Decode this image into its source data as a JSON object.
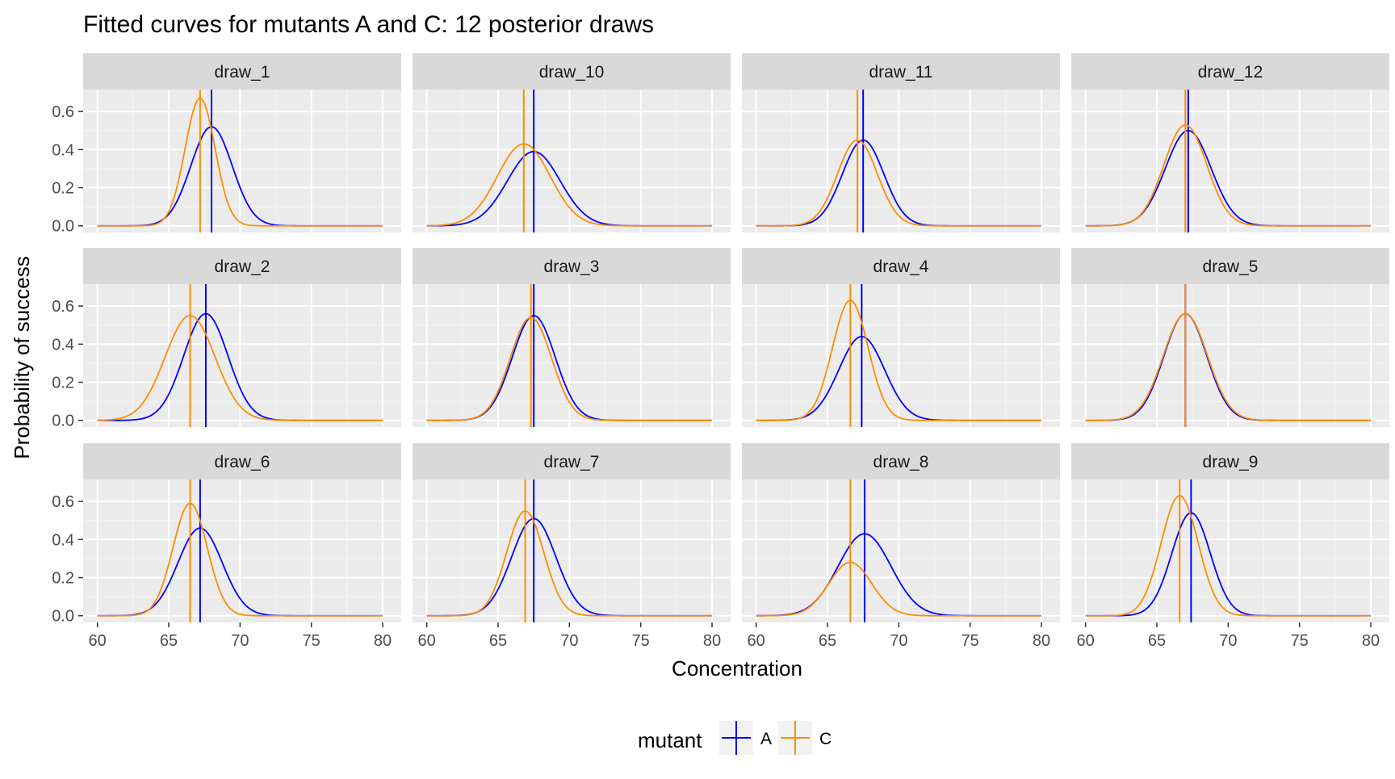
{
  "chart_data": {
    "type": "line",
    "title": "Fitted curves for mutants A and C: 12 posterior draws",
    "xlabel": "Concentration",
    "ylabel": "Probability of success",
    "xlim": [
      59,
      81.3
    ],
    "ylim": [
      -0.035,
      0.715
    ],
    "x_ticks": [
      60,
      65,
      70,
      75,
      80
    ],
    "y_ticks": [
      0.0,
      0.2,
      0.4,
      0.6
    ],
    "y_tick_labels": [
      "0.0",
      "0.2",
      "0.4",
      "0.6"
    ],
    "facets_ncol": 4,
    "grid": true,
    "legend": {
      "title": "mutant",
      "position": "bottom",
      "entries": [
        {
          "key": "A",
          "label": "A",
          "color": "#0000FF"
        },
        {
          "key": "C",
          "label": "C",
          "color": "#FF8C00"
        }
      ]
    },
    "curve_shape": "Gaussian peak: y = peak * exp(-(x - center)^2 / (2 * sd^2)), x from 60 to 80; vertical line at center",
    "panels": [
      {
        "label": "draw_1",
        "A": {
          "center": 68.0,
          "peak": 0.52,
          "sd": 1.45
        },
        "C": {
          "center": 67.2,
          "peak": 0.67,
          "sd": 1.05
        }
      },
      {
        "label": "draw_10",
        "A": {
          "center": 67.5,
          "peak": 0.39,
          "sd": 1.85
        },
        "C": {
          "center": 66.8,
          "peak": 0.43,
          "sd": 1.85
        }
      },
      {
        "label": "draw_11",
        "A": {
          "center": 67.5,
          "peak": 0.45,
          "sd": 1.45
        },
        "C": {
          "center": 67.1,
          "peak": 0.45,
          "sd": 1.4
        }
      },
      {
        "label": "draw_12",
        "A": {
          "center": 67.2,
          "peak": 0.5,
          "sd": 1.6
        },
        "C": {
          "center": 67.0,
          "peak": 0.53,
          "sd": 1.5
        }
      },
      {
        "label": "draw_2",
        "A": {
          "center": 67.6,
          "peak": 0.56,
          "sd": 1.55
        },
        "C": {
          "center": 66.5,
          "peak": 0.55,
          "sd": 1.75
        }
      },
      {
        "label": "draw_3",
        "A": {
          "center": 67.5,
          "peak": 0.55,
          "sd": 1.5
        },
        "C": {
          "center": 67.3,
          "peak": 0.54,
          "sd": 1.45
        }
      },
      {
        "label": "draw_4",
        "A": {
          "center": 67.4,
          "peak": 0.44,
          "sd": 1.6
        },
        "C": {
          "center": 66.6,
          "peak": 0.63,
          "sd": 1.25
        }
      },
      {
        "label": "draw_5",
        "A": {
          "center": 67.0,
          "peak": 0.56,
          "sd": 1.5
        },
        "C": {
          "center": 67.0,
          "peak": 0.56,
          "sd": 1.55
        }
      },
      {
        "label": "draw_6",
        "A": {
          "center": 67.2,
          "peak": 0.46,
          "sd": 1.55
        },
        "C": {
          "center": 66.5,
          "peak": 0.59,
          "sd": 1.2
        }
      },
      {
        "label": "draw_7",
        "A": {
          "center": 67.5,
          "peak": 0.51,
          "sd": 1.55
        },
        "C": {
          "center": 66.9,
          "peak": 0.55,
          "sd": 1.3
        }
      },
      {
        "label": "draw_8",
        "A": {
          "center": 67.6,
          "peak": 0.43,
          "sd": 1.85
        },
        "C": {
          "center": 66.6,
          "peak": 0.28,
          "sd": 1.5
        }
      },
      {
        "label": "draw_9",
        "A": {
          "center": 67.4,
          "peak": 0.54,
          "sd": 1.35
        },
        "C": {
          "center": 66.6,
          "peak": 0.63,
          "sd": 1.3
        }
      }
    ]
  }
}
